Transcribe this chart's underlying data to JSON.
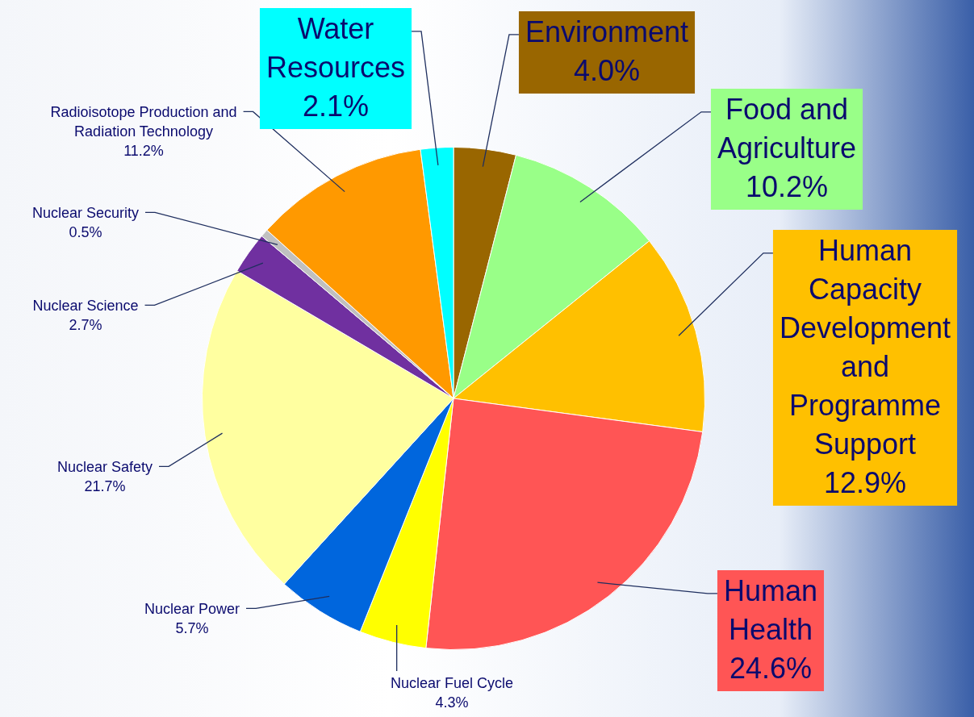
{
  "chart_data": {
    "type": "pie",
    "categories": [
      "Environment",
      "Food and Agriculture",
      "Human Capacity Development and Programme Support",
      "Human Health",
      "Nuclear Fuel Cycle",
      "Nuclear Power",
      "Nuclear Safety",
      "Nuclear Science",
      "Nuclear Security",
      "Radioisotope Production and Radiation Technology",
      "Water Resources"
    ],
    "values": [
      4.0,
      10.2,
      12.9,
      24.6,
      4.3,
      5.7,
      21.7,
      2.7,
      0.5,
      11.2,
      2.1
    ],
    "value_labels": [
      "4.0%",
      "10.2%",
      "12.9%",
      "24.6%",
      "4.3%",
      "5.7%",
      "21.7%",
      "2.7%",
      "0.5%",
      "11.2%",
      "2.1%"
    ],
    "colors": [
      "#996600",
      "#99ff88",
      "#ffc000",
      "#ff5555",
      "#ffff00",
      "#0066dd",
      "#ffffa0",
      "#7030a0",
      "#c0c0c0",
      "#ff9900",
      "#00ffff"
    ],
    "legend": false
  }
}
